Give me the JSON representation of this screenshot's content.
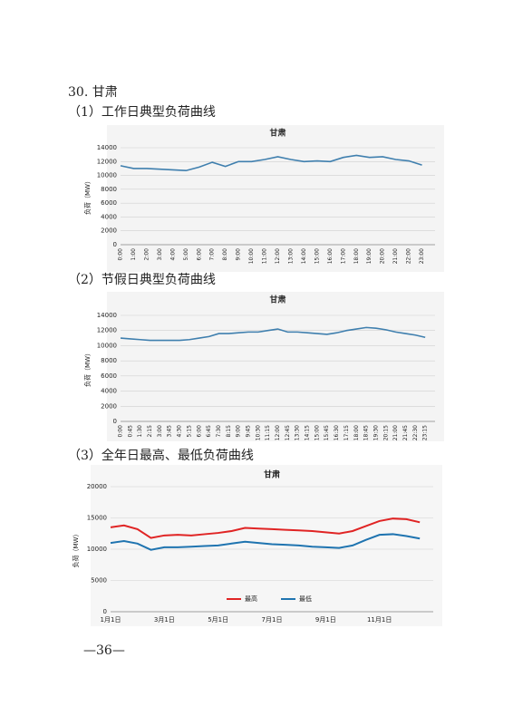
{
  "heading": "30. 甘肃",
  "sections": [
    "（1）工作日典型负荷曲线",
    "（2）节假日典型负荷曲线",
    "（3）全年日最高、最低负荷曲线"
  ],
  "page_number": "—36—",
  "chart_data": [
    {
      "type": "line",
      "title": "甘肃",
      "y_label": "负荷（MW）",
      "categories": [
        "0:00",
        "1:00",
        "2:00",
        "3:00",
        "4:00",
        "5:00",
        "6:00",
        "7:00",
        "8:00",
        "9:00",
        "10:00",
        "11:00",
        "12:00",
        "13:00",
        "14:00",
        "15:00",
        "16:00",
        "17:00",
        "18:00",
        "19:00",
        "20:00",
        "21:00",
        "22:00",
        "23:00"
      ],
      "values": [
        11400,
        11000,
        11000,
        10900,
        10800,
        10700,
        11200,
        11900,
        11300,
        12000,
        12000,
        12300,
        12700,
        12300,
        12000,
        12100,
        12000,
        12600,
        12900,
        12600,
        12700,
        12300,
        12100,
        11500
      ],
      "color": "#3f7fae",
      "ylim": [
        0,
        14000
      ],
      "yticks": [
        0,
        2000,
        4000,
        6000,
        8000,
        10000,
        12000,
        14000
      ],
      "grid": true
    },
    {
      "type": "line",
      "title": "甘肃",
      "y_label": "负荷（MW）",
      "categories": [
        "0:00",
        "0:45",
        "1:30",
        "2:15",
        "3:00",
        "3:45",
        "4:30",
        "5:15",
        "6:00",
        "6:45",
        "7:30",
        "8:15",
        "9:00",
        "9:45",
        "10:30",
        "11:15",
        "12:00",
        "12:45",
        "13:30",
        "14:15",
        "15:00",
        "15:45",
        "16:30",
        "17:15",
        "18:00",
        "18:45",
        "19:30",
        "20:15",
        "21:00",
        "21:45",
        "22:30",
        "23:15"
      ],
      "values": [
        11000,
        10900,
        10800,
        10700,
        10700,
        10700,
        10700,
        10800,
        11000,
        11200,
        11600,
        11600,
        11700,
        11800,
        11800,
        12000,
        12200,
        11800,
        11800,
        11700,
        11600,
        11500,
        11700,
        12000,
        12200,
        12400,
        12300,
        12100,
        11800,
        11600,
        11400,
        11100
      ],
      "color": "#3f7fae",
      "ylim": [
        0,
        14000
      ],
      "yticks": [
        0,
        2000,
        4000,
        6000,
        8000,
        10000,
        12000,
        14000
      ],
      "grid": true
    },
    {
      "type": "line",
      "title": "甘肃",
      "y_label": "负荷（MW）",
      "categories": [
        "1月1日",
        null,
        null,
        null,
        "3月1日",
        null,
        null,
        null,
        "5月1日",
        null,
        null,
        null,
        "7月1日",
        null,
        null,
        null,
        "9月1日",
        null,
        null,
        null,
        "11月1日",
        null,
        null,
        null
      ],
      "series": [
        {
          "name": "最高",
          "color": "#e02424",
          "values": [
            13500,
            13800,
            13200,
            11800,
            12200,
            12300,
            12200,
            12400,
            12600,
            12900,
            13400,
            13300,
            13200,
            13100,
            13000,
            12900,
            12700,
            12500,
            12900,
            13700,
            14500,
            14900,
            14800,
            14300
          ]
        },
        {
          "name": "最低",
          "color": "#1f74b0",
          "values": [
            11000,
            11300,
            10900,
            9900,
            10300,
            10300,
            10400,
            10500,
            10600,
            10900,
            11200,
            11000,
            10800,
            10700,
            10600,
            10400,
            10300,
            10200,
            10600,
            11500,
            12300,
            12400,
            12100,
            11700
          ]
        }
      ],
      "ylim": [
        0,
        20000
      ],
      "yticks": [
        0,
        5000,
        10000,
        15000,
        20000
      ],
      "grid": true,
      "legend": "bottom"
    }
  ]
}
